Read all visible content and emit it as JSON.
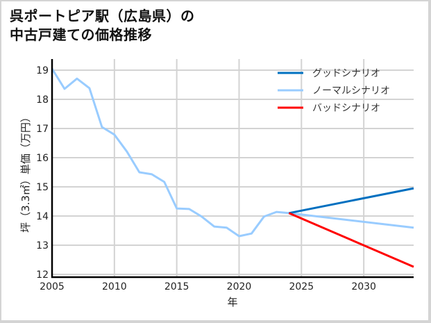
{
  "title": {
    "line1": "呉ポートピア駅（広島県）の",
    "line2": "中古戸建ての価格推移"
  },
  "colors": {
    "good": "#0070c0",
    "normal": "#99ccff",
    "bad": "#ff0000",
    "grid": "#d3d3d3",
    "axis": "#000000"
  },
  "chart_data": {
    "type": "line",
    "title": "呉ポートピア駅（広島県）の中古戸建ての価格推移",
    "xlabel": "年",
    "ylabel": "坪（3.3㎡）単価（万円）",
    "xlim": [
      2005,
      2034
    ],
    "ylim": [
      11.9,
      19.3
    ],
    "xticks": [
      2005,
      2010,
      2015,
      2020,
      2025,
      2030
    ],
    "yticks": [
      12,
      13,
      14,
      15,
      16,
      17,
      18,
      19
    ],
    "grid": true,
    "legend_position": "upper right",
    "series": [
      {
        "name": "グッドシナリオ",
        "color": "#0070c0",
        "x": [
          2024,
          2034
        ],
        "values": [
          14.1,
          14.95
        ]
      },
      {
        "name": "ノーマルシナリオ",
        "color": "#99ccff",
        "x": [
          2005,
          2006,
          2007,
          2008,
          2009,
          2010,
          2011,
          2012,
          2013,
          2014,
          2015,
          2016,
          2017,
          2018,
          2019,
          2020,
          2021,
          2022,
          2023,
          2024,
          2034
        ],
        "values": [
          19.05,
          18.36,
          18.71,
          18.38,
          17.05,
          16.79,
          16.21,
          15.5,
          15.43,
          15.17,
          14.26,
          14.24,
          13.98,
          13.64,
          13.6,
          13.31,
          13.4,
          13.98,
          14.14,
          14.1,
          13.6
        ]
      },
      {
        "name": "バッドシナリオ",
        "color": "#ff0000",
        "x": [
          2024,
          2034
        ],
        "values": [
          14.1,
          12.26
        ]
      }
    ]
  },
  "axes": {
    "x_tick_labels": [
      "2005",
      "2010",
      "2015",
      "2020",
      "2025",
      "2030"
    ],
    "y_tick_labels": [
      "12",
      "13",
      "14",
      "15",
      "16",
      "17",
      "18",
      "19"
    ],
    "xlabel": "年",
    "ylabel": "坪（3.3㎡）単価（万円）"
  },
  "legend": {
    "items": [
      {
        "label": "グッドシナリオ",
        "color": "#0070c0"
      },
      {
        "label": "ノーマルシナリオ",
        "color": "#99ccff"
      },
      {
        "label": "バッドシナリオ",
        "color": "#ff0000"
      }
    ]
  }
}
